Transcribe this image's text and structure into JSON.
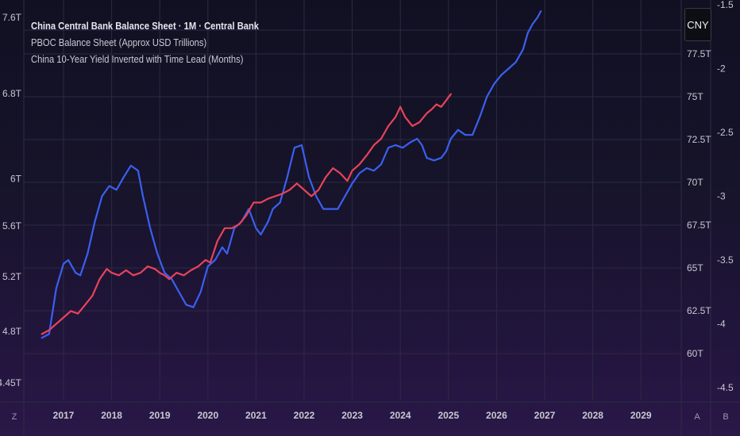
{
  "legend": {
    "title": "China Central Bank Balance Sheet · 1M · Central Bank",
    "line1": "PBOC Balance Sheet (Approx USD Trillions)",
    "line2": "China 10-Year Yield Inverted with Time Lead (Months)"
  },
  "currency_button": "CNY",
  "corner_buttons": {
    "left": "Z",
    "auto": "A",
    "right": "B"
  },
  "colors": {
    "blue": "#3b5ff0",
    "red": "#e8435a",
    "grid": "#2c2a44",
    "axis_text": "#c8c8d2"
  },
  "chart_data": {
    "type": "line",
    "x_ticks": [
      "2017",
      "2018",
      "2019",
      "2020",
      "2021",
      "2022",
      "2023",
      "2024",
      "2025",
      "2026",
      "2027",
      "2028",
      "2029"
    ],
    "left_axis": {
      "ticks": [
        "7.6T",
        "6.8T",
        "6T",
        "5.6T",
        "5.2T",
        "4.8T",
        "4.45T"
      ],
      "values": [
        7.6,
        6.8,
        6.0,
        5.6,
        5.2,
        4.8,
        4.45
      ],
      "scale": "log"
    },
    "mid_axis": {
      "ticks": [
        "77.5T",
        "75T",
        "72.5T",
        "70T",
        "67.5T",
        "65T",
        "62.5T",
        "60T"
      ],
      "values": [
        77.5,
        75,
        72.5,
        70,
        67.5,
        65,
        62.5,
        60
      ]
    },
    "right_axis": {
      "ticks": [
        "-1.5",
        "-2",
        "-2.5",
        "-3",
        "-3.5",
        "-4",
        "-4.5"
      ],
      "values": [
        -1.5,
        -2,
        -2.5,
        -3,
        -3.5,
        -4,
        -4.5
      ]
    },
    "series": [
      {
        "color": "#3b5ff0",
        "axis": "right",
        "x": [
          2016.55,
          2016.7,
          2016.85,
          2017.0,
          2017.1,
          2017.25,
          2017.35,
          2017.5,
          2017.65,
          2017.8,
          2017.95,
          2018.1,
          2018.25,
          2018.4,
          2018.55,
          2018.65,
          2018.8,
          2018.95,
          2019.1,
          2019.25,
          2019.4,
          2019.55,
          2019.7,
          2019.85,
          2020.0,
          2020.15,
          2020.3,
          2020.4,
          2020.55,
          2020.7,
          2020.85,
          2021.0,
          2021.1,
          2021.25,
          2021.35,
          2021.5,
          2021.65,
          2021.8,
          2021.95,
          2022.1,
          2022.25,
          2022.4,
          2022.55,
          2022.7,
          2022.85,
          2023.0,
          2023.15,
          2023.3,
          2023.45,
          2023.6,
          2023.75,
          2023.9,
          2024.05,
          2024.2,
          2024.35,
          2024.45,
          2024.55,
          2024.7,
          2024.85,
          2024.95,
          2025.05,
          2025.2,
          2025.35,
          2025.5,
          2025.65,
          2025.8,
          2025.95,
          2026.1,
          2026.25,
          2026.4,
          2026.55,
          2026.65,
          2026.75,
          2026.85,
          2026.92
        ],
        "y": [
          -4.11,
          -4.08,
          -3.72,
          -3.53,
          -3.5,
          -3.6,
          -3.62,
          -3.45,
          -3.2,
          -3.0,
          -2.92,
          -2.95,
          -2.85,
          -2.76,
          -2.8,
          -3.0,
          -3.25,
          -3.45,
          -3.6,
          -3.65,
          -3.75,
          -3.85,
          -3.87,
          -3.75,
          -3.55,
          -3.5,
          -3.4,
          -3.45,
          -3.25,
          -3.2,
          -3.1,
          -3.25,
          -3.3,
          -3.2,
          -3.1,
          -3.05,
          -2.85,
          -2.62,
          -2.6,
          -2.85,
          -3.0,
          -3.1,
          -3.1,
          -3.1,
          -3.0,
          -2.9,
          -2.82,
          -2.78,
          -2.8,
          -2.75,
          -2.62,
          -2.6,
          -2.62,
          -2.58,
          -2.55,
          -2.6,
          -2.7,
          -2.72,
          -2.7,
          -2.65,
          -2.55,
          -2.48,
          -2.52,
          -2.52,
          -2.38,
          -2.22,
          -2.12,
          -2.05,
          -2.0,
          -1.95,
          -1.85,
          -1.72,
          -1.65,
          -1.6,
          -1.55
        ]
      },
      {
        "color": "#e8435a",
        "axis": "right",
        "x": [
          2016.55,
          2016.7,
          2016.85,
          2017.0,
          2017.15,
          2017.3,
          2017.45,
          2017.6,
          2017.75,
          2017.9,
          2018.0,
          2018.15,
          2018.3,
          2018.45,
          2018.6,
          2018.75,
          2018.9,
          2019.0,
          2019.1,
          2019.2,
          2019.35,
          2019.5,
          2019.65,
          2019.8,
          2019.95,
          2020.05,
          2020.2,
          2020.35,
          2020.5,
          2020.65,
          2020.8,
          2020.95,
          2021.1,
          2021.25,
          2021.4,
          2021.55,
          2021.7,
          2021.85,
          2022.0,
          2022.15,
          2022.3,
          2022.45,
          2022.6,
          2022.75,
          2022.9,
          2023.0,
          2023.15,
          2023.3,
          2023.45,
          2023.6,
          2023.75,
          2023.9,
          2024.0,
          2024.1,
          2024.25,
          2024.4,
          2024.55,
          2024.65,
          2024.75,
          2024.85,
          2024.95,
          2025.05
        ],
        "y": [
          -4.08,
          -4.05,
          -4.0,
          -3.95,
          -3.9,
          -3.92,
          -3.85,
          -3.78,
          -3.65,
          -3.57,
          -3.6,
          -3.62,
          -3.58,
          -3.62,
          -3.6,
          -3.55,
          -3.57,
          -3.6,
          -3.62,
          -3.65,
          -3.6,
          -3.62,
          -3.58,
          -3.55,
          -3.5,
          -3.52,
          -3.35,
          -3.25,
          -3.25,
          -3.22,
          -3.15,
          -3.05,
          -3.05,
          -3.02,
          -3.0,
          -2.98,
          -2.95,
          -2.9,
          -2.95,
          -3.0,
          -2.95,
          -2.85,
          -2.78,
          -2.82,
          -2.88,
          -2.8,
          -2.75,
          -2.68,
          -2.6,
          -2.55,
          -2.45,
          -2.38,
          -2.3,
          -2.38,
          -2.45,
          -2.42,
          -2.35,
          -2.32,
          -2.28,
          -2.3,
          -2.25,
          -2.2
        ]
      }
    ]
  }
}
